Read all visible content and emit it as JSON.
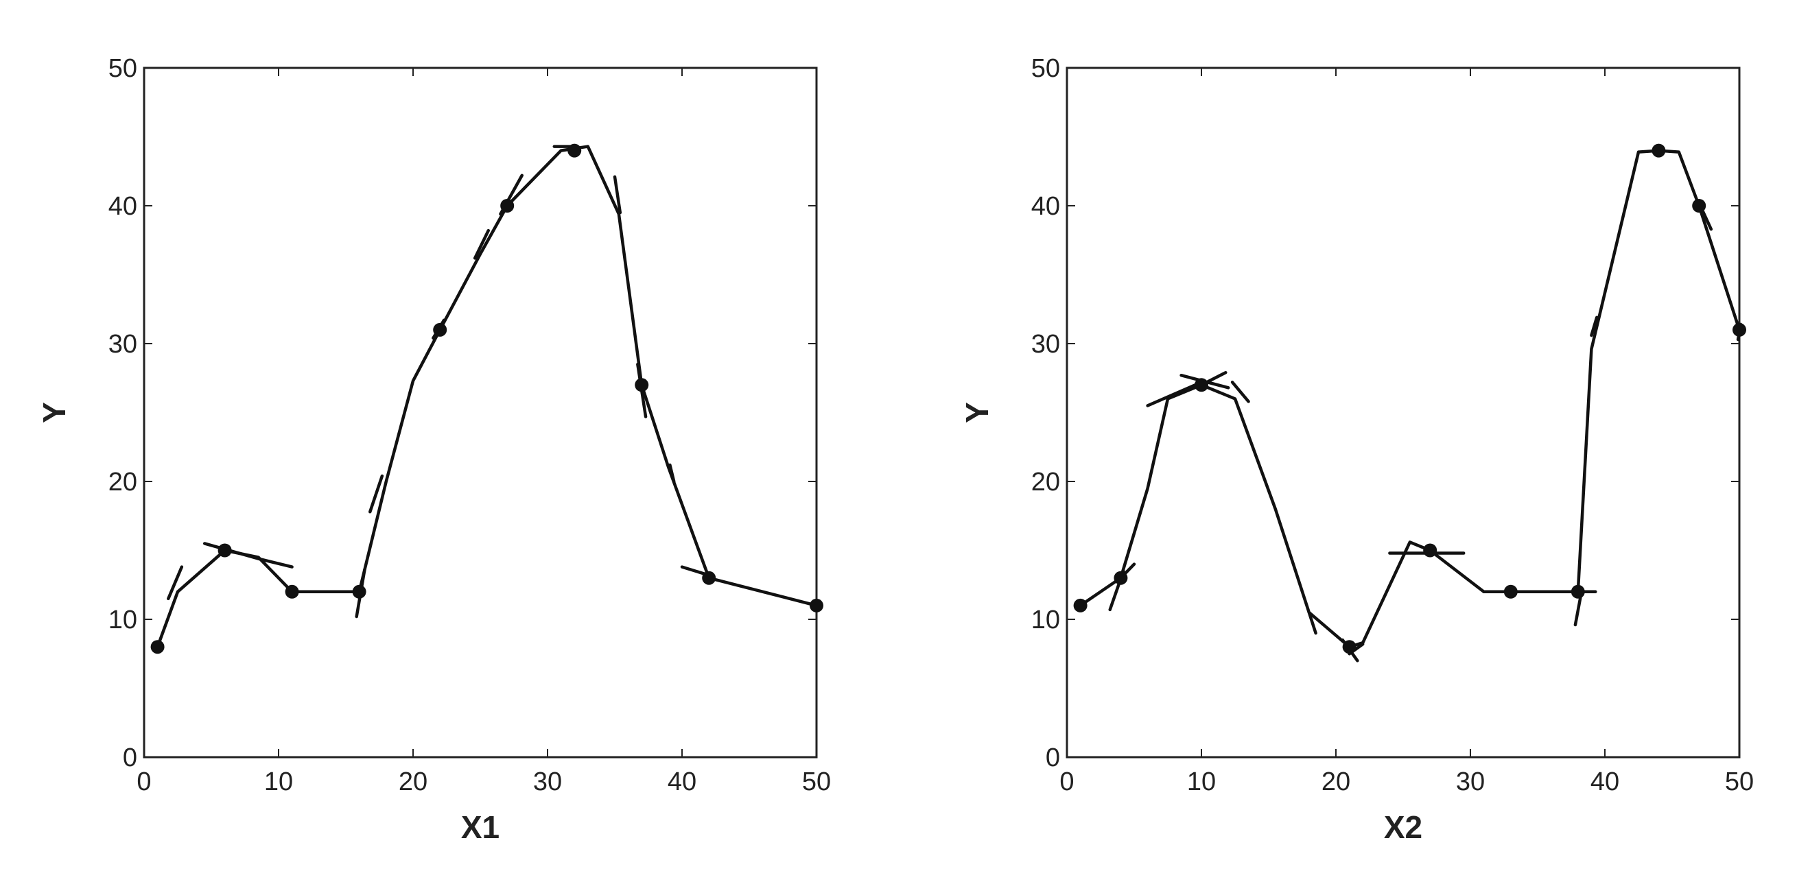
{
  "chart_data": [
    {
      "type": "line",
      "xlabel": "X1",
      "ylabel": "Y",
      "xlim": [
        0,
        50
      ],
      "ylim": [
        0,
        50
      ],
      "xticks": [
        0,
        10,
        20,
        30,
        40,
        50
      ],
      "yticks": [
        0,
        10,
        20,
        30,
        40,
        50
      ],
      "grid": false,
      "legend": "none",
      "points": {
        "x": [
          1,
          6,
          11,
          16,
          22,
          27,
          32,
          37,
          42,
          50
        ],
        "y": [
          8,
          15,
          12,
          12,
          31,
          40,
          44,
          27,
          13,
          11
        ]
      },
      "curve": {
        "x": [
          1,
          2.5,
          6,
          8.5,
          11,
          13.5,
          16,
          18,
          20,
          22,
          25,
          27,
          31,
          33,
          35.3,
          37,
          39,
          42,
          50
        ],
        "y": [
          8,
          12,
          15,
          14.5,
          12,
          12,
          12,
          20,
          27.3,
          31,
          36.5,
          40,
          44,
          44.3,
          39.4,
          27,
          21,
          13,
          11
        ]
      },
      "segments": [
        {
          "x": [
            1.8,
            2.8
          ],
          "y": [
            11.5,
            13.8
          ]
        },
        {
          "x": [
            4.5,
            8.5
          ],
          "y": [
            15.5,
            14.4
          ]
        },
        {
          "x": [
            8.5,
            11
          ],
          "y": [
            14.4,
            13.8
          ]
        },
        {
          "x": [
            15.8,
            16.4
          ],
          "y": [
            10.2,
            13.6
          ]
        },
        {
          "x": [
            16.8,
            17.7
          ],
          "y": [
            17.8,
            20.4
          ]
        },
        {
          "x": [
            21.5,
            22.3
          ],
          "y": [
            30.4,
            31.7
          ]
        },
        {
          "x": [
            24.6,
            25.6
          ],
          "y": [
            36.2,
            38.2
          ]
        },
        {
          "x": [
            26.5,
            28.1
          ],
          "y": [
            39.4,
            42.2
          ]
        },
        {
          "x": [
            30.5,
            32
          ],
          "y": [
            44.3,
            44.3
          ]
        },
        {
          "x": [
            35,
            35.4
          ],
          "y": [
            42.1,
            39.5
          ]
        },
        {
          "x": [
            36.7,
            37.3
          ],
          "y": [
            28.5,
            24.7
          ]
        },
        {
          "x": [
            39.1,
            39.4
          ],
          "y": [
            21.2,
            20.0
          ]
        },
        {
          "x": [
            40,
            42
          ],
          "y": [
            13.8,
            13.2
          ]
        }
      ]
    },
    {
      "type": "line",
      "xlabel": "X2",
      "ylabel": "Y",
      "xlim": [
        0,
        50
      ],
      "ylim": [
        0,
        50
      ],
      "xticks": [
        0,
        10,
        20,
        30,
        40,
        50
      ],
      "yticks": [
        0,
        10,
        20,
        30,
        40,
        50
      ],
      "grid": false,
      "legend": "none",
      "points": {
        "x": [
          1,
          4,
          10,
          21,
          27,
          33,
          38,
          44,
          47,
          50
        ],
        "y": [
          11,
          13,
          27,
          8,
          15,
          12,
          12,
          44,
          40,
          31
        ]
      },
      "curve": {
        "x": [
          1,
          4,
          6,
          7.5,
          10,
          12.5,
          15.5,
          18,
          21,
          22,
          25.5,
          27,
          31,
          38,
          39,
          42.5,
          44,
          45.5,
          47,
          50
        ],
        "y": [
          11,
          13,
          19.5,
          26,
          27,
          26,
          18,
          10.5,
          8,
          8.3,
          15.6,
          15,
          12,
          12,
          29.6,
          43.9,
          44,
          43.9,
          40,
          31
        ]
      },
      "segments": [
        {
          "x": [
            3.2,
            4.2
          ],
          "y": [
            10.7,
            13.5
          ]
        },
        {
          "x": [
            4.2,
            5
          ],
          "y": [
            13.2,
            14
          ]
        },
        {
          "x": [
            6,
            10
          ],
          "y": [
            25.5,
            27.2
          ]
        },
        {
          "x": [
            8.5,
            12
          ],
          "y": [
            27.7,
            26.8
          ]
        },
        {
          "x": [
            10,
            11.8
          ],
          "y": [
            27,
            27.9
          ]
        },
        {
          "x": [
            12.3,
            13.5
          ],
          "y": [
            27.2,
            25.8
          ]
        },
        {
          "x": [
            18,
            18.5
          ],
          "y": [
            10.5,
            9
          ]
        },
        {
          "x": [
            20.5,
            21.6
          ],
          "y": [
            8.5,
            7
          ]
        },
        {
          "x": [
            21,
            22
          ],
          "y": [
            7.5,
            8.2
          ]
        },
        {
          "x": [
            24,
            29.5
          ],
          "y": [
            14.8,
            14.8
          ]
        },
        {
          "x": [
            37.8,
            38.3
          ],
          "y": [
            9.6,
            12.2
          ]
        },
        {
          "x": [
            38,
            39.3
          ],
          "y": [
            12,
            12
          ]
        },
        {
          "x": [
            39,
            39.4
          ],
          "y": [
            30.6,
            31.9
          ]
        },
        {
          "x": [
            47,
            47.9
          ],
          "y": [
            40.2,
            38.3
          ]
        },
        {
          "x": [
            49.9,
            50.1
          ],
          "y": [
            30.3,
            31.4
          ]
        }
      ]
    }
  ]
}
